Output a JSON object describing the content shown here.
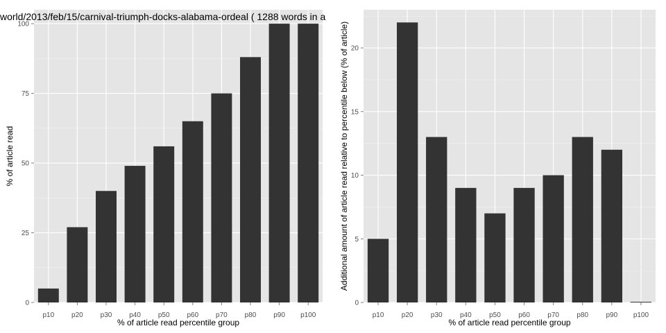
{
  "colors": {
    "panel_background": "#e5e5e5",
    "grid_major": "#ffffff",
    "grid_minor": "#f2f2f2",
    "bar_fill": "#333333",
    "tick_mark": "#7f7f7f",
    "tick_text": "#4d4d4d"
  },
  "chart_data": [
    {
      "type": "bar",
      "title": "world/2013/feb/15/carnival-triumph-docks-alabama-ordeal ( 1288 words in a",
      "xlabel": "% of article read percentile group",
      "ylabel": "% of article read",
      "categories": [
        "p10",
        "p20",
        "p30",
        "p40",
        "p50",
        "p60",
        "p70",
        "p80",
        "p90",
        "p100"
      ],
      "values": [
        5,
        27,
        40,
        49,
        56,
        65,
        75,
        88,
        100,
        100
      ],
      "ylim": [
        0,
        105
      ],
      "yticks": [
        0,
        25,
        50,
        75,
        100
      ],
      "grid": true
    },
    {
      "type": "bar",
      "title": "",
      "xlabel": "% of article read percentile group",
      "ylabel": "Additional amount of article read relative to percentile below (% of article)",
      "categories": [
        "p10",
        "p20",
        "p30",
        "p40",
        "p50",
        "p60",
        "p70",
        "p80",
        "p90",
        "p100"
      ],
      "values": [
        5,
        22,
        13,
        9,
        7,
        9,
        10,
        13,
        12,
        0
      ],
      "ylim": [
        0,
        23
      ],
      "yticks": [
        0,
        5,
        10,
        15,
        20
      ],
      "grid": true
    }
  ]
}
